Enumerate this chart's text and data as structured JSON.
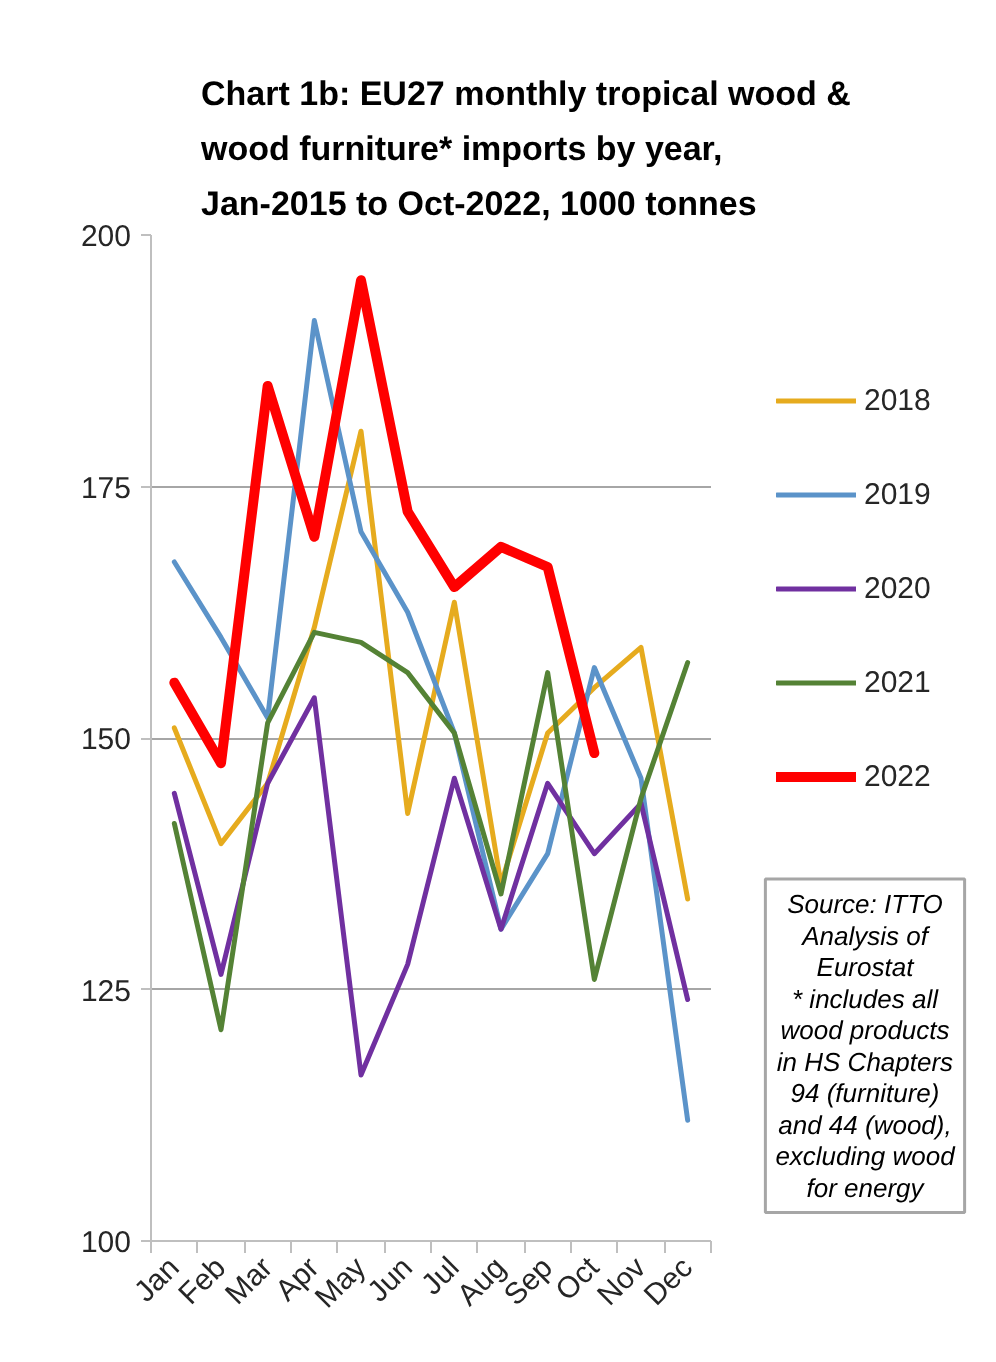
{
  "chart_data": {
    "type": "line",
    "title": "Chart 1b: EU27 monthly tropical wood & wood furniture* imports by year, Jan-2015 to Oct-2022, 1000 tonnes",
    "categories": [
      "Jan",
      "Feb",
      "Mar",
      "Apr",
      "May",
      "Jun",
      "Jul",
      "Aug",
      "Sep",
      "Oct",
      "Nov",
      "Dec"
    ],
    "series": [
      {
        "name": "2018",
        "color": "#e6ab1e",
        "values": [
          151,
          139.5,
          145.5,
          161,
          180.5,
          142.5,
          163.5,
          135.5,
          150.5,
          155,
          159,
          134
        ]
      },
      {
        "name": "2019",
        "color": "#5b93c9",
        "values": [
          167.5,
          160,
          152,
          191.5,
          170.5,
          162.5,
          150.5,
          131,
          138.5,
          157,
          146,
          112
        ]
      },
      {
        "name": "2020",
        "color": "#7030a0",
        "values": [
          144.5,
          126.5,
          145.5,
          154,
          116.5,
          127.5,
          146,
          131,
          145.5,
          138.5,
          143.5,
          124
        ]
      },
      {
        "name": "2021",
        "color": "#548235",
        "values": [
          141.5,
          121,
          151.5,
          160.5,
          159.5,
          156.5,
          150.5,
          134.5,
          156.5,
          126,
          144,
          157.5
        ]
      },
      {
        "name": "2022",
        "color": "#ff0000",
        "values": [
          155.5,
          147.5,
          185,
          170,
          195.5,
          172.5,
          165,
          169,
          167,
          148.5,
          null,
          null
        ]
      }
    ],
    "ylim": [
      100,
      200
    ],
    "yticks": [
      100,
      125,
      150,
      175,
      200
    ],
    "grid": "y",
    "legend": "right",
    "annotations": [
      "Source: ITTO Analysis of Eurostat",
      "* includes all wood products in HS Chapters 94 (furniture) and 44 (wood), excluding wood for energy"
    ]
  }
}
